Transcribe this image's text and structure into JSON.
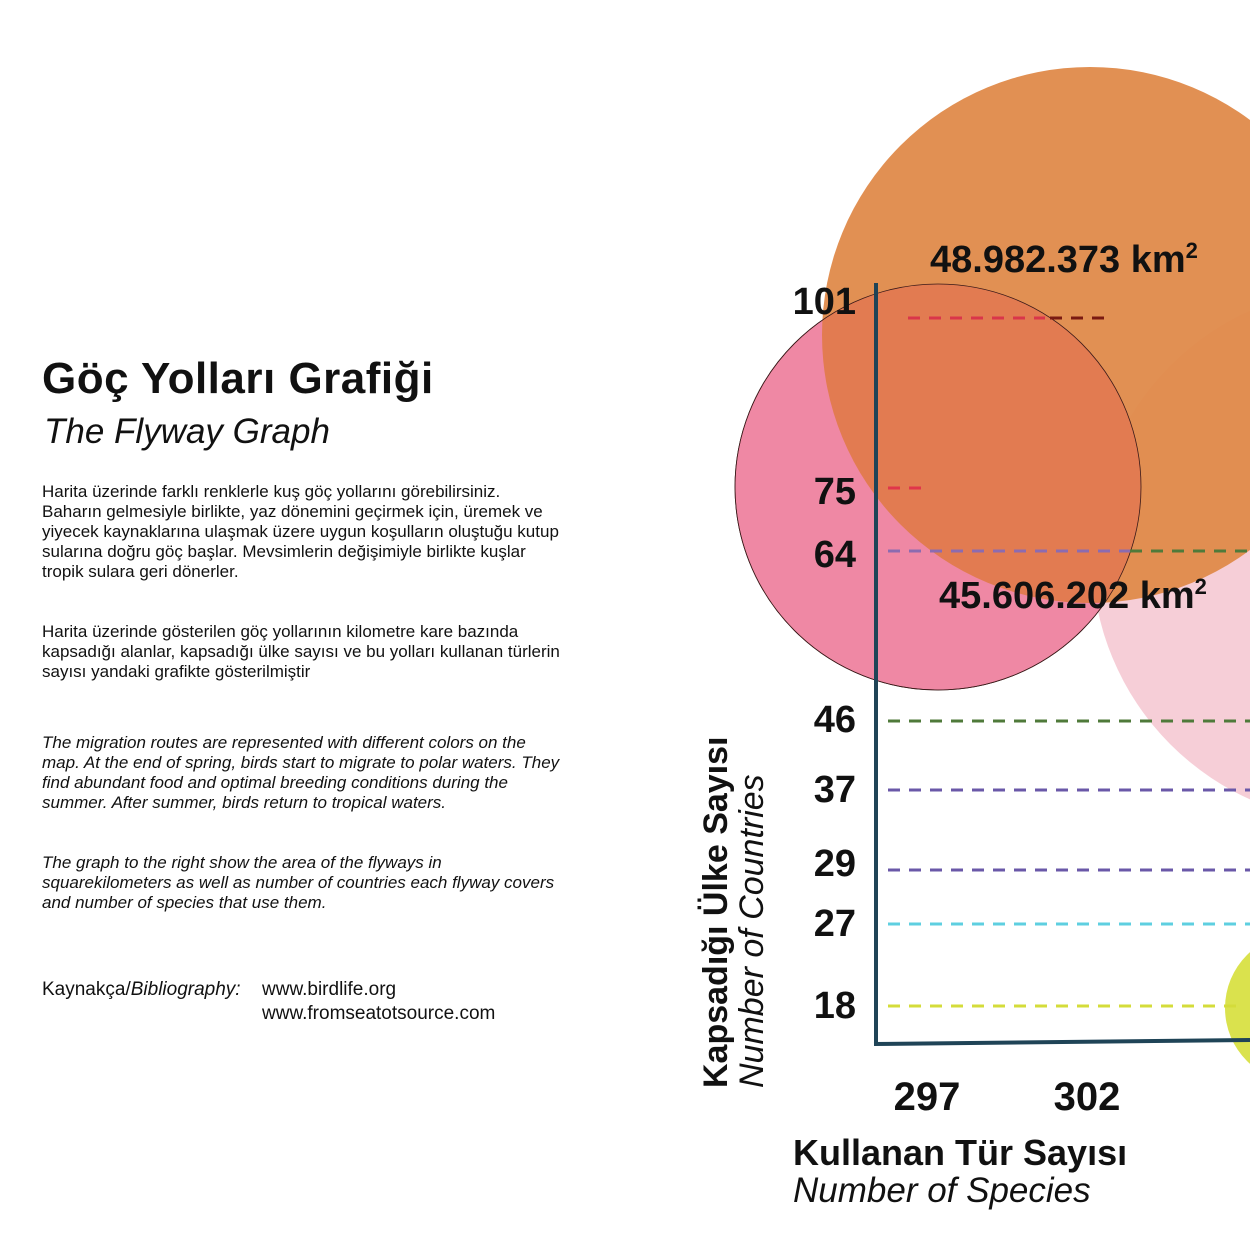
{
  "header": {
    "title": "Göç Yolları Grafiği",
    "subtitle": "The Flyway Graph"
  },
  "text": {
    "p1": "Harita üzerinde farklı renklerle kuş göç yollarını görebilirsiniz. Baharın gelmesiyle birlikte, yaz dönemini geçirmek için, üremek ve yiyecek kaynaklarına ulaşmak üzere uygun koşulların oluştuğu kutup sularına doğru göç başlar. Mevsimlerin değişimiyle birlikte kuşlar tropik sulara geri dönerler.",
    "p2": "Harita üzerinde gösterilen göç yollarının kilometre kare bazında kapsadığı alanlar, kapsadığı ülke sayısı ve bu yolları kullanan türlerin sayısı yandaki grafikte gösterilmiştir",
    "p3": "The migration routes are represented with different colors on the map. At the end of spring, birds start to migrate to polar waters. They find abundant food and optimal breeding conditions during the summer. After summer, birds return to tropical waters.",
    "p4": "The graph to the right show the area of the flyways in squarekilometers as well as number of countries each flyway covers and number of species that use them."
  },
  "bibliography": {
    "label_tr": "Kaynakça/",
    "label_en": "Bibliography:",
    "links": [
      "www.birdlife.org",
      "www.fromseatotsource.com"
    ]
  },
  "chart_data": {
    "type": "bubble",
    "y_axis": {
      "title": "Kapsadığı Ülke Sayısı",
      "subtitle": "Number of Countries",
      "ticks": [
        101,
        75,
        64,
        46,
        37,
        29,
        27,
        18
      ]
    },
    "x_axis": {
      "title": "Kullanan Tür Sayısı",
      "subtitle": "Number of Species",
      "ticks": [
        297,
        302
      ]
    },
    "series": [
      {
        "y": 101,
        "line_color": "#d9364a",
        "line_color_2": "#7a1a12"
      },
      {
        "y": 75,
        "line_color": "#e0364a"
      },
      {
        "y": 64,
        "line_color": "#8c6bb0",
        "line_color_2": "#4f7a3a"
      },
      {
        "y": 46,
        "line_color": "#4f7a3a"
      },
      {
        "y": 37,
        "line_color": "#6a58a8"
      },
      {
        "y": 29,
        "line_color": "#6a58a8"
      },
      {
        "y": 27,
        "line_color": "#5ecfe0"
      },
      {
        "y": 18,
        "line_color": "#d4dc3a"
      }
    ],
    "bubbles": [
      {
        "area_label": "48.982.373",
        "color": "#df8a4a",
        "opacity": 0.95
      },
      {
        "area_label": "45.606.202",
        "color": "#f192b8",
        "opacity": 0.9
      },
      {
        "area_label": "",
        "color": "#f5c5d0",
        "opacity": 0.85
      },
      {
        "area_label": "",
        "color": "#d8e043",
        "opacity": 0.95
      }
    ],
    "area_unit": "km",
    "area_unit_sup": "2",
    "axis_color": "#1f4457"
  }
}
